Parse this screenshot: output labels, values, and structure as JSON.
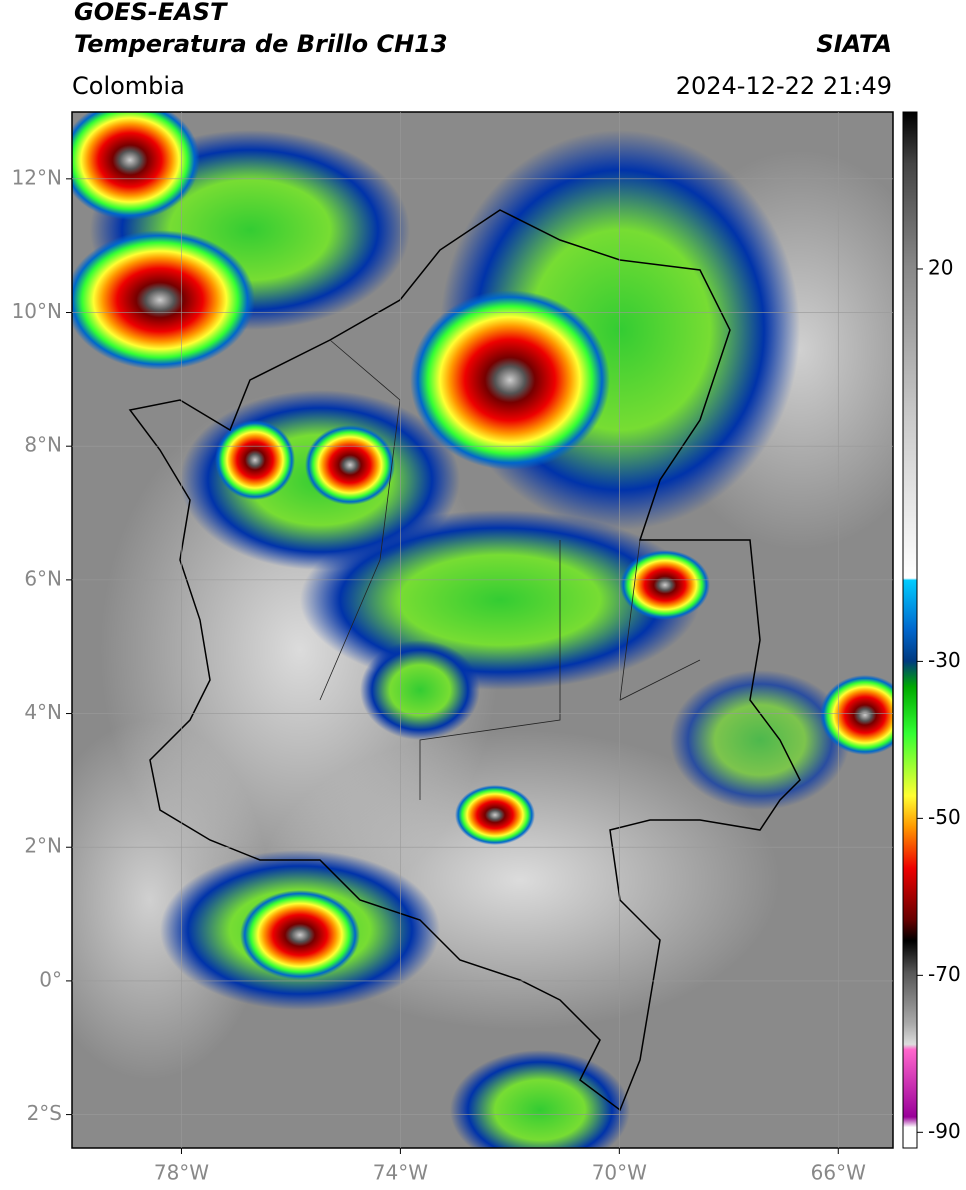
{
  "header": {
    "title_line1": "GOES-EAST",
    "title_line2": "Temperatura de Brillo CH13",
    "region": "Colombia",
    "source": "SIATA",
    "timestamp": "2024-12-22 21:49"
  },
  "map": {
    "xlim": [
      -80,
      -65
    ],
    "ylim": [
      -2.5,
      13
    ],
    "xticks": [
      {
        "value": -78,
        "label": "78°W"
      },
      {
        "value": -74,
        "label": "74°W"
      },
      {
        "value": -70,
        "label": "70°W"
      },
      {
        "value": -66,
        "label": "66°W"
      }
    ],
    "yticks": [
      {
        "value": 12,
        "label": "12°N"
      },
      {
        "value": 10,
        "label": "10°N"
      },
      {
        "value": 8,
        "label": "8°N"
      },
      {
        "value": 6,
        "label": "6°N"
      },
      {
        "value": 4,
        "label": "4°N"
      },
      {
        "value": 2,
        "label": "2°N"
      },
      {
        "value": 0,
        "label": "0°"
      },
      {
        "value": -2,
        "label": "2°S"
      }
    ],
    "grid": true
  },
  "colorbar": {
    "lim": [
      -92,
      40
    ],
    "ticks": [
      20,
      -30,
      -50,
      -70,
      -90
    ]
  }
}
